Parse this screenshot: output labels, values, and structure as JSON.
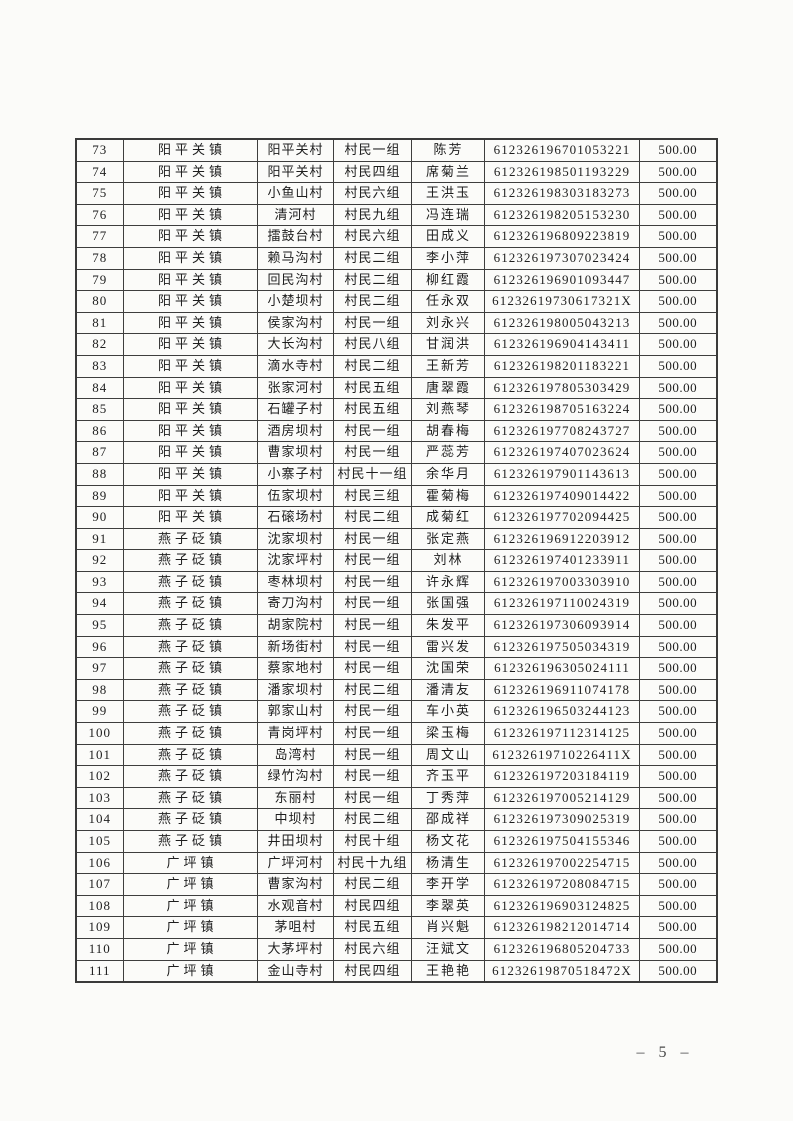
{
  "document": {
    "page_number": "– 5 –"
  },
  "table": {
    "rows": [
      [
        "73",
        "阳平关镇",
        "阳平关村",
        "村民一组",
        "陈芳",
        "612326196701053221",
        "500.00"
      ],
      [
        "74",
        "阳平关镇",
        "阳平关村",
        "村民四组",
        "席菊兰",
        "612326198501193229",
        "500.00"
      ],
      [
        "75",
        "阳平关镇",
        "小鱼山村",
        "村民六组",
        "王洪玉",
        "612326198303183273",
        "500.00"
      ],
      [
        "76",
        "阳平关镇",
        "清河村",
        "村民九组",
        "冯连瑞",
        "612326198205153230",
        "500.00"
      ],
      [
        "77",
        "阳平关镇",
        "擂鼓台村",
        "村民六组",
        "田成义",
        "612326196809223819",
        "500.00"
      ],
      [
        "78",
        "阳平关镇",
        "赖马沟村",
        "村民二组",
        "李小萍",
        "612326197307023424",
        "500.00"
      ],
      [
        "79",
        "阳平关镇",
        "回民沟村",
        "村民二组",
        "柳红霞",
        "612326196901093447",
        "500.00"
      ],
      [
        "80",
        "阳平关镇",
        "小楚坝村",
        "村民二组",
        "任永双",
        "61232619730617321X",
        "500.00"
      ],
      [
        "81",
        "阳平关镇",
        "侯家沟村",
        "村民一组",
        "刘永兴",
        "612326198005043213",
        "500.00"
      ],
      [
        "82",
        "阳平关镇",
        "大长沟村",
        "村民八组",
        "甘润洪",
        "612326196904143411",
        "500.00"
      ],
      [
        "83",
        "阳平关镇",
        "滴水寺村",
        "村民二组",
        "王新芳",
        "612326198201183221",
        "500.00"
      ],
      [
        "84",
        "阳平关镇",
        "张家河村",
        "村民五组",
        "唐翠霞",
        "612326197805303429",
        "500.00"
      ],
      [
        "85",
        "阳平关镇",
        "石罐子村",
        "村民五组",
        "刘燕琴",
        "612326198705163224",
        "500.00"
      ],
      [
        "86",
        "阳平关镇",
        "酒房坝村",
        "村民一组",
        "胡春梅",
        "612326197708243727",
        "500.00"
      ],
      [
        "87",
        "阳平关镇",
        "曹家坝村",
        "村民一组",
        "严蕊芳",
        "612326197407023624",
        "500.00"
      ],
      [
        "88",
        "阳平关镇",
        "小寨子村",
        "村民十一组",
        "余华月",
        "612326197901143613",
        "500.00"
      ],
      [
        "89",
        "阳平关镇",
        "伍家坝村",
        "村民三组",
        "霍菊梅",
        "612326197409014422",
        "500.00"
      ],
      [
        "90",
        "阳平关镇",
        "石磙场村",
        "村民二组",
        "成菊红",
        "612326197702094425",
        "500.00"
      ],
      [
        "91",
        "燕子砭镇",
        "沈家坝村",
        "村民一组",
        "张定燕",
        "612326196912203912",
        "500.00"
      ],
      [
        "92",
        "燕子砭镇",
        "沈家坪村",
        "村民一组",
        "刘林",
        "612326197401233911",
        "500.00"
      ],
      [
        "93",
        "燕子砭镇",
        "枣林坝村",
        "村民一组",
        "许永辉",
        "612326197003303910",
        "500.00"
      ],
      [
        "94",
        "燕子砭镇",
        "寄刀沟村",
        "村民一组",
        "张国强",
        "612326197110024319",
        "500.00"
      ],
      [
        "95",
        "燕子砭镇",
        "胡家院村",
        "村民一组",
        "朱发平",
        "612326197306093914",
        "500.00"
      ],
      [
        "96",
        "燕子砭镇",
        "新场街村",
        "村民一组",
        "雷兴发",
        "612326197505034319",
        "500.00"
      ],
      [
        "97",
        "燕子砭镇",
        "蔡家地村",
        "村民一组",
        "沈国荣",
        "612326196305024111",
        "500.00"
      ],
      [
        "98",
        "燕子砭镇",
        "潘家坝村",
        "村民二组",
        "潘清友",
        "612326196911074178",
        "500.00"
      ],
      [
        "99",
        "燕子砭镇",
        "郭家山村",
        "村民一组",
        "车小英",
        "612326196503244123",
        "500.00"
      ],
      [
        "100",
        "燕子砭镇",
        "青岗坪村",
        "村民一组",
        "梁玉梅",
        "612326197112314125",
        "500.00"
      ],
      [
        "101",
        "燕子砭镇",
        "岛湾村",
        "村民一组",
        "周文山",
        "61232619710226411X",
        "500.00"
      ],
      [
        "102",
        "燕子砭镇",
        "绿竹沟村",
        "村民一组",
        "齐玉平",
        "612326197203184119",
        "500.00"
      ],
      [
        "103",
        "燕子砭镇",
        "东丽村",
        "村民一组",
        "丁秀萍",
        "612326197005214129",
        "500.00"
      ],
      [
        "104",
        "燕子砭镇",
        "中坝村",
        "村民二组",
        "邵成祥",
        "612326197309025319",
        "500.00"
      ],
      [
        "105",
        "燕子砭镇",
        "井田坝村",
        "村民十组",
        "杨文花",
        "612326197504155346",
        "500.00"
      ],
      [
        "106",
        "广坪镇",
        "广坪河村",
        "村民十九组",
        "杨清生",
        "612326197002254715",
        "500.00"
      ],
      [
        "107",
        "广坪镇",
        "曹家沟村",
        "村民二组",
        "李开学",
        "612326197208084715",
        "500.00"
      ],
      [
        "108",
        "广坪镇",
        "水观音村",
        "村民四组",
        "李翠英",
        "612326196903124825",
        "500.00"
      ],
      [
        "109",
        "广坪镇",
        "茅咀村",
        "村民五组",
        "肖兴魁",
        "612326198212014714",
        "500.00"
      ],
      [
        "110",
        "广坪镇",
        "大茅坪村",
        "村民六组",
        "汪斌文",
        "612326196805204733",
        "500.00"
      ],
      [
        "111",
        "广坪镇",
        "金山寺村",
        "村民四组",
        "王艳艳",
        "61232619870518472X",
        "500.00"
      ]
    ]
  }
}
